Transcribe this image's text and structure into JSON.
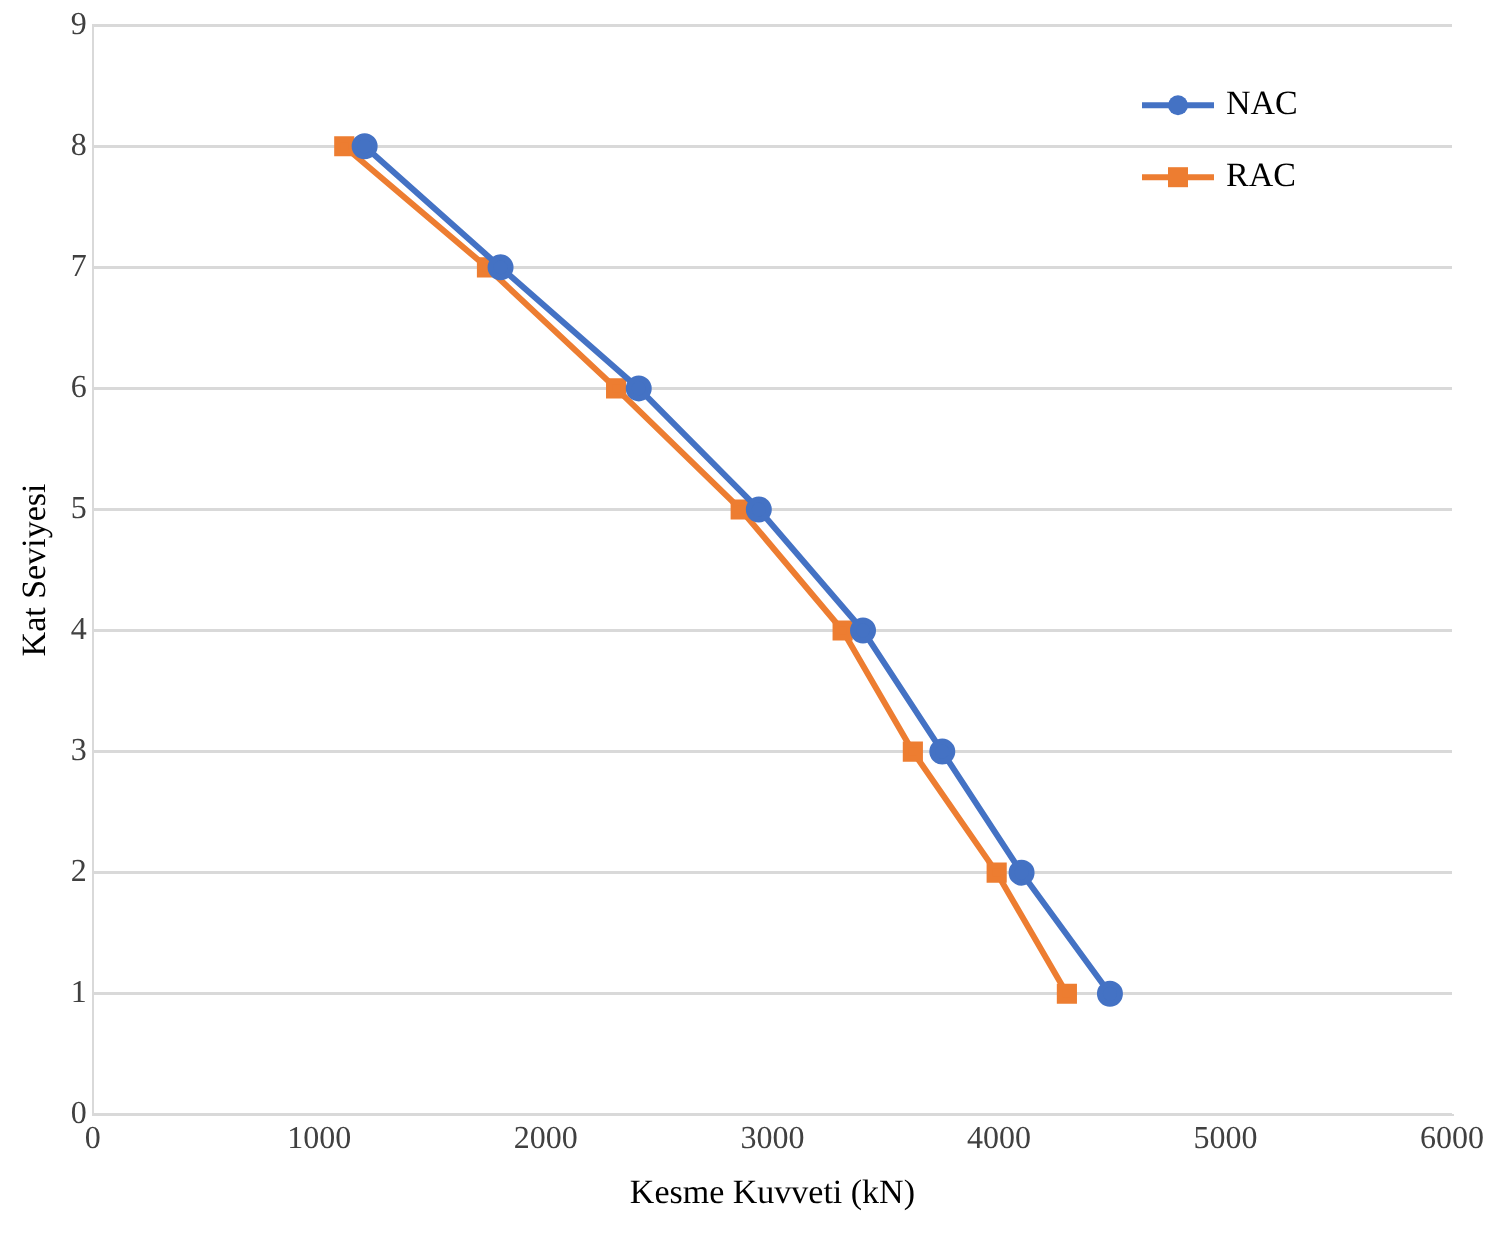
{
  "chart_data": {
    "type": "line",
    "xlabel": "Kesme Kuvveti (kN)",
    "ylabel": "Kat Seviyesi",
    "xlim": [
      0,
      6000
    ],
    "xticks": [
      0,
      1000,
      2000,
      3000,
      4000,
      5000,
      6000
    ],
    "ylim": [
      0,
      9
    ],
    "yticks": [
      0,
      1,
      2,
      3,
      4,
      5,
      6,
      7,
      8,
      9
    ],
    "grid": "y",
    "legend": "top right",
    "line_style": "solid",
    "series": [
      {
        "name": "NAC",
        "color": "#4472c4",
        "marker": "circle",
        "x": [
          1200,
          1800,
          2410,
          2940,
          3400,
          3750,
          4100,
          4490
        ],
        "values": [
          8,
          7,
          6,
          5,
          4,
          3,
          2,
          1
        ]
      },
      {
        "name": "RAC",
        "color": "#ed7d31",
        "marker": "square",
        "x": [
          1110,
          1740,
          2310,
          2860,
          3310,
          3620,
          3990,
          4300
        ],
        "values": [
          8,
          7,
          6,
          5,
          4,
          3,
          2,
          1
        ]
      }
    ]
  }
}
